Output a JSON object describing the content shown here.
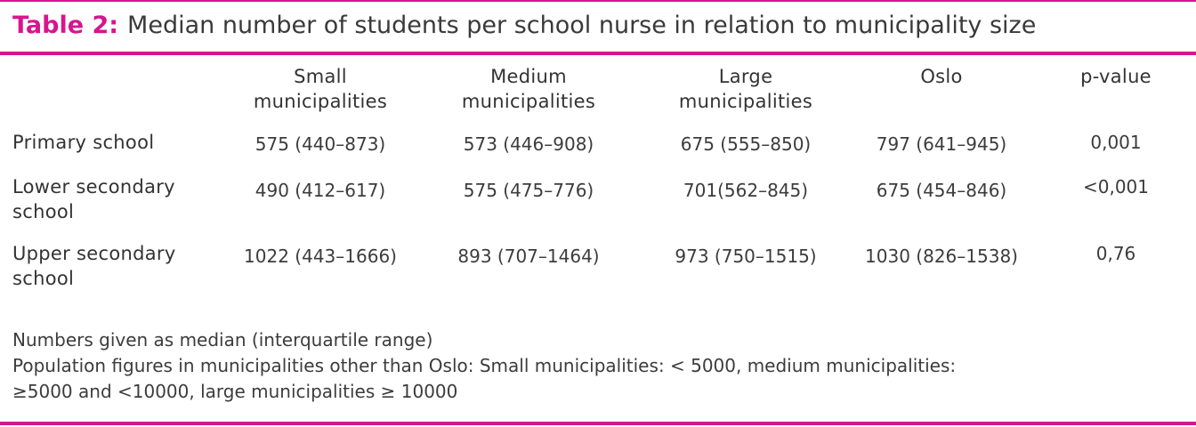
{
  "caption": {
    "label": "Table 2:",
    "text": "Median number of students per school nurse in relation to municipality size"
  },
  "columns": [
    "Small\nmunicipalities",
    "Medium\nmunicipalities",
    "Large\nmunicipalities",
    "Oslo",
    "p-value"
  ],
  "rows": [
    {
      "label": "Primary school",
      "cells": [
        "575 (440–873)",
        "573 (446–908)",
        "675 (555–850)",
        "797 (641–945)",
        "0,001"
      ]
    },
    {
      "label": "Lower secondary\nschool",
      "cells": [
        "490 (412–617)",
        "575 (475–776)",
        "701(562–845)",
        "675 (454–846)",
        "<0,001"
      ]
    },
    {
      "label": "Upper secondary\nschool",
      "cells": [
        "1022 (443–1666)",
        "893 (707–1464)",
        "973 (750–1515)",
        "1030 (826–1538)",
        "0,76"
      ]
    }
  ],
  "notes": [
    "Numbers given as median (interquartile range)",
    "Population figures in municipalities other than Oslo: Small municipalities: < 5000, medium municipalities:",
    "≥5000 and <10000, large municipalities ≥ 10000"
  ],
  "colors": {
    "accent": "#d6158f",
    "text": "#333333"
  }
}
